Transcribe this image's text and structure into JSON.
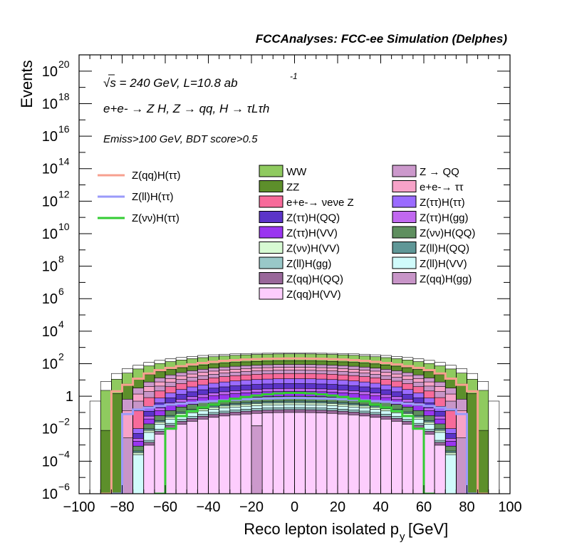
{
  "header": {
    "title": "FCCAnalyses: FCC-ee Simulation (Delphes)"
  },
  "annotations": {
    "energy": "√s = 240 GeV, L=10.8 ab",
    "lumi_exp": "-1",
    "process": "e+e- → Z H, Z → qq, H → τLτh",
    "selection": "Emiss>100 GeV, BDT score>0.5"
  },
  "chart_data": {
    "type": "histogram",
    "xlabel": "Reco lepton isolated p",
    "xlabel_sub": "y",
    "xlabel_unit": "[GeV]",
    "ylabel": "Events",
    "xlim": [
      -100,
      100
    ],
    "ylim": [
      1e-06,
      1e+21
    ],
    "log_y": true,
    "bin_width": 5,
    "x_ticks": [
      "−100",
      "−80",
      "−60",
      "−40",
      "−20",
      "0",
      "20",
      "40",
      "60",
      "80",
      "100"
    ],
    "y_ticks": [
      {
        "base": "10",
        "exp": "−6"
      },
      {
        "base": "10",
        "exp": "−4"
      },
      {
        "base": "10",
        "exp": "−2"
      },
      {
        "base": "1",
        "exp": ""
      },
      {
        "base": "10",
        "exp": "2"
      },
      {
        "base": "10",
        "exp": "4"
      },
      {
        "base": "10",
        "exp": "6"
      },
      {
        "base": "10",
        "exp": "8"
      },
      {
        "base": "10",
        "exp": "10"
      },
      {
        "base": "10",
        "exp": "12"
      },
      {
        "base": "10",
        "exp": "14"
      },
      {
        "base": "10",
        "exp": "16"
      },
      {
        "base": "10",
        "exp": "18"
      },
      {
        "base": "10",
        "exp": "20"
      }
    ],
    "stack_draw_order": [
      {
        "name": "WW",
        "color": "#8fca5f",
        "peak": 400,
        "half_width": 92
      },
      {
        "name": "ZZ",
        "color": "#5d8f2b",
        "peak": 150,
        "half_width": 88
      },
      {
        "name": "Z → QQ",
        "color": "#cc99cc",
        "peak": 90,
        "half_width": 82
      },
      {
        "name": "e+e-→ ττ",
        "color": "#f7a3c8",
        "peak": 60,
        "half_width": 80
      },
      {
        "name": "Z(qq)H(gg)",
        "color": "#c895c8",
        "peak": 40,
        "half_width": 78
      },
      {
        "name": "e+e-→ νeνe Z",
        "color": "#f76a9a",
        "peak": 25,
        "half_width": 76
      },
      {
        "name": "Z(ττ)H(ττ)",
        "color": "#9a6bff",
        "peak": 12,
        "half_width": 74
      },
      {
        "name": "Z(ττ)H(QQ)",
        "color": "#5b34c8",
        "peak": 6,
        "half_width": 74
      },
      {
        "name": "Z(ττ)H(gg)",
        "color": "#c168f0",
        "peak": 3,
        "half_width": 74
      },
      {
        "name": "Z(ττ)H(VV)",
        "color": "#9a35f0",
        "peak": 2,
        "half_width": 74
      },
      {
        "name": "Z(νν)H(QQ)",
        "color": "#5f8f5f",
        "peak": 1,
        "half_width": 74
      },
      {
        "name": "Z(ll)H(QQ)",
        "color": "#5f9797",
        "peak": 0.5,
        "half_width": 74
      },
      {
        "name": "Z(νν)H(VV)",
        "color": "#d7fad3",
        "peak": 0.4,
        "half_width": 74
      },
      {
        "name": "Z(ll)H(VV)",
        "color": "#d0fbfb",
        "peak": 0.3,
        "half_width": 74
      },
      {
        "name": "Z(ll)H(gg)",
        "color": "#99c8c8",
        "peak": 0.2,
        "half_width": 72
      },
      {
        "name": "Z(qq)H(QQ)",
        "color": "#99679a",
        "peak": 0.15,
        "half_width": 72
      },
      {
        "name": "Z(qq)H(VV)",
        "color": "#fdcdfd",
        "peak": 0.1,
        "half_width": 72
      }
    ],
    "stack_top_values": [
      {
        "x": -97.5,
        "y": 0.01
      },
      {
        "x": -92.5,
        "y": 0.5
      },
      {
        "x": -87.5,
        "y": 8
      },
      {
        "x": -82.5,
        "y": 25
      },
      {
        "x": -77.5,
        "y": 50
      },
      {
        "x": -72.5,
        "y": 80
      },
      {
        "x": -67.5,
        "y": 120
      },
      {
        "x": -62.5,
        "y": 160
      },
      {
        "x": -57.5,
        "y": 200
      },
      {
        "x": -52.5,
        "y": 240
      },
      {
        "x": -47.5,
        "y": 280
      },
      {
        "x": -42.5,
        "y": 320
      },
      {
        "x": -37.5,
        "y": 350
      },
      {
        "x": -32.5,
        "y": 380
      },
      {
        "x": -27.5,
        "y": 400
      },
      {
        "x": -22.5,
        "y": 420
      },
      {
        "x": -17.5,
        "y": 430
      },
      {
        "x": -12.5,
        "y": 440
      },
      {
        "x": -7.5,
        "y": 445
      },
      {
        "x": -2.5,
        "y": 450
      },
      {
        "x": 2.5,
        "y": 450
      },
      {
        "x": 7.5,
        "y": 445
      },
      {
        "x": 12.5,
        "y": 440
      },
      {
        "x": 17.5,
        "y": 430
      },
      {
        "x": 22.5,
        "y": 420
      },
      {
        "x": 27.5,
        "y": 400
      },
      {
        "x": 32.5,
        "y": 380
      },
      {
        "x": 37.5,
        "y": 350
      },
      {
        "x": 42.5,
        "y": 320
      },
      {
        "x": 47.5,
        "y": 280
      },
      {
        "x": 52.5,
        "y": 240
      },
      {
        "x": 57.5,
        "y": 200
      },
      {
        "x": 62.5,
        "y": 160
      },
      {
        "x": 67.5,
        "y": 120
      },
      {
        "x": 72.5,
        "y": 80
      },
      {
        "x": 77.5,
        "y": 50
      },
      {
        "x": 82.5,
        "y": 25
      },
      {
        "x": 87.5,
        "y": 8
      },
      {
        "x": 92.5,
        "y": 0.5
      },
      {
        "x": 97.5,
        "y": 0.01
      }
    ],
    "background_legend": [
      {
        "name": "WW",
        "color": "#8fca5f"
      },
      {
        "name": "Z → QQ",
        "color": "#cc99cc"
      },
      {
        "name": "ZZ",
        "color": "#5d8f2b"
      },
      {
        "name": "e+e-→ ττ",
        "color": "#f7a3c8"
      },
      {
        "name": "e+e-→ νeνe Z",
        "color": "#f76a9a"
      },
      {
        "name": "Z(ττ)H(ττ)",
        "color": "#9a6bff"
      },
      {
        "name": "Z(ττ)H(QQ)",
        "color": "#5b34c8"
      },
      {
        "name": "Z(ττ)H(gg)",
        "color": "#c168f0"
      },
      {
        "name": "Z(ττ)H(VV)",
        "color": "#9a35f0"
      },
      {
        "name": "Z(νν)H(QQ)",
        "color": "#5f8f5f"
      },
      {
        "name": "Z(νν)H(VV)",
        "color": "#d7fad3"
      },
      {
        "name": "Z(ll)H(QQ)",
        "color": "#5f9797"
      },
      {
        "name": "Z(ll)H(gg)",
        "color": "#99c8c8"
      },
      {
        "name": "Z(ll)H(VV)",
        "color": "#d0fbfb"
      },
      {
        "name": "Z(qq)H(QQ)",
        "color": "#99679a"
      },
      {
        "name": "Z(qq)H(gg)",
        "color": "#c895c8"
      },
      {
        "name": "Z(qq)H(VV)",
        "color": "#fdcdfd"
      }
    ],
    "signals": [
      {
        "name": "Z(qq)H(ττ)",
        "color": "#f7a08f",
        "points": [
          {
            "x": -87.5,
            "y": 1e-06
          },
          {
            "x": -82.5,
            "y": 2
          },
          {
            "x": -77.5,
            "y": 5
          },
          {
            "x": -72.5,
            "y": 12
          },
          {
            "x": -67.5,
            "y": 25
          },
          {
            "x": -62.5,
            "y": 40
          },
          {
            "x": -57.5,
            "y": 55
          },
          {
            "x": -52.5,
            "y": 70
          },
          {
            "x": -47.5,
            "y": 90
          },
          {
            "x": -42.5,
            "y": 110
          },
          {
            "x": -37.5,
            "y": 130
          },
          {
            "x": -32.5,
            "y": 150
          },
          {
            "x": -27.5,
            "y": 165
          },
          {
            "x": -22.5,
            "y": 180
          },
          {
            "x": -17.5,
            "y": 190
          },
          {
            "x": -12.5,
            "y": 200
          },
          {
            "x": -7.5,
            "y": 205
          },
          {
            "x": -2.5,
            "y": 210
          },
          {
            "x": 2.5,
            "y": 210
          },
          {
            "x": 7.5,
            "y": 205
          },
          {
            "x": 12.5,
            "y": 200
          },
          {
            "x": 17.5,
            "y": 190
          },
          {
            "x": 22.5,
            "y": 180
          },
          {
            "x": 27.5,
            "y": 165
          },
          {
            "x": 32.5,
            "y": 150
          },
          {
            "x": 37.5,
            "y": 130
          },
          {
            "x": 42.5,
            "y": 110
          },
          {
            "x": 47.5,
            "y": 90
          },
          {
            "x": 52.5,
            "y": 70
          },
          {
            "x": 57.5,
            "y": 55
          },
          {
            "x": 62.5,
            "y": 40
          },
          {
            "x": 67.5,
            "y": 25
          },
          {
            "x": 72.5,
            "y": 12
          },
          {
            "x": 77.5,
            "y": 5
          },
          {
            "x": 82.5,
            "y": 2
          },
          {
            "x": 87.5,
            "y": 1e-06
          }
        ]
      },
      {
        "name": "Z(ll)H(ττ)",
        "color": "#9a9afa",
        "points": [
          {
            "x": -82.5,
            "y": 1e-06
          },
          {
            "x": -77.5,
            "y": 0.08
          },
          {
            "x": -72.5,
            "y": 0.15
          },
          {
            "x": -67.5,
            "y": 0.2
          },
          {
            "x": -62.5,
            "y": 0.25
          },
          {
            "x": -57.5,
            "y": 0.3
          },
          {
            "x": -52.5,
            "y": 0.35
          },
          {
            "x": -47.5,
            "y": 0.4
          },
          {
            "x": -42.5,
            "y": 0.45
          },
          {
            "x": -37.5,
            "y": 0.5
          },
          {
            "x": -32.5,
            "y": 0.55
          },
          {
            "x": -27.5,
            "y": 0.6
          },
          {
            "x": -22.5,
            "y": 0.65
          },
          {
            "x": -17.5,
            "y": 0.7
          },
          {
            "x": -12.5,
            "y": 0.72
          },
          {
            "x": -7.5,
            "y": 0.75
          },
          {
            "x": -2.5,
            "y": 0.78
          },
          {
            "x": 2.5,
            "y": 0.78
          },
          {
            "x": 7.5,
            "y": 0.75
          },
          {
            "x": 12.5,
            "y": 0.72
          },
          {
            "x": 17.5,
            "y": 0.7
          },
          {
            "x": 22.5,
            "y": 0.65
          },
          {
            "x": 27.5,
            "y": 0.6
          },
          {
            "x": 32.5,
            "y": 0.55
          },
          {
            "x": 37.5,
            "y": 0.5
          },
          {
            "x": 42.5,
            "y": 0.45
          },
          {
            "x": 47.5,
            "y": 0.4
          },
          {
            "x": 52.5,
            "y": 0.35
          },
          {
            "x": 57.5,
            "y": 0.3
          },
          {
            "x": 62.5,
            "y": 0.25
          },
          {
            "x": 67.5,
            "y": 0.2
          },
          {
            "x": 72.5,
            "y": 0.15
          },
          {
            "x": 77.5,
            "y": 0.08
          },
          {
            "x": 82.5,
            "y": 1e-06
          }
        ]
      },
      {
        "name": "Z(νν)H(ττ)",
        "color": "#33cc33",
        "points": [
          {
            "x": -62.5,
            "y": 1e-06
          },
          {
            "x": -57.5,
            "y": 0.01
          },
          {
            "x": -52.5,
            "y": 0.06
          },
          {
            "x": -47.5,
            "y": 0.12
          },
          {
            "x": -42.5,
            "y": 0.2
          },
          {
            "x": -37.5,
            "y": 0.3
          },
          {
            "x": -32.5,
            "y": 0.5
          },
          {
            "x": -27.5,
            "y": 0.7
          },
          {
            "x": -22.5,
            "y": 0.9
          },
          {
            "x": -17.5,
            "y": 1.1
          },
          {
            "x": -12.5,
            "y": 1.3
          },
          {
            "x": -7.5,
            "y": 1.5
          },
          {
            "x": -2.5,
            "y": 1.6
          },
          {
            "x": 2.5,
            "y": 1.6
          },
          {
            "x": 7.5,
            "y": 1.5
          },
          {
            "x": 12.5,
            "y": 1.3
          },
          {
            "x": 17.5,
            "y": 1.1
          },
          {
            "x": 22.5,
            "y": 0.9
          },
          {
            "x": 27.5,
            "y": 0.7
          },
          {
            "x": 32.5,
            "y": 0.5
          },
          {
            "x": 37.5,
            "y": 0.3
          },
          {
            "x": 42.5,
            "y": 0.2
          },
          {
            "x": 47.5,
            "y": 0.12
          },
          {
            "x": 52.5,
            "y": 0.06
          },
          {
            "x": 57.5,
            "y": 0.01
          },
          {
            "x": 62.5,
            "y": 1e-06
          }
        ]
      }
    ],
    "special_bins": [
      {
        "name": "Z → QQ",
        "x": -17.5,
        "y": 0.015,
        "color": "#cc99cc"
      }
    ],
    "grid": false,
    "legend_placement": "top"
  }
}
